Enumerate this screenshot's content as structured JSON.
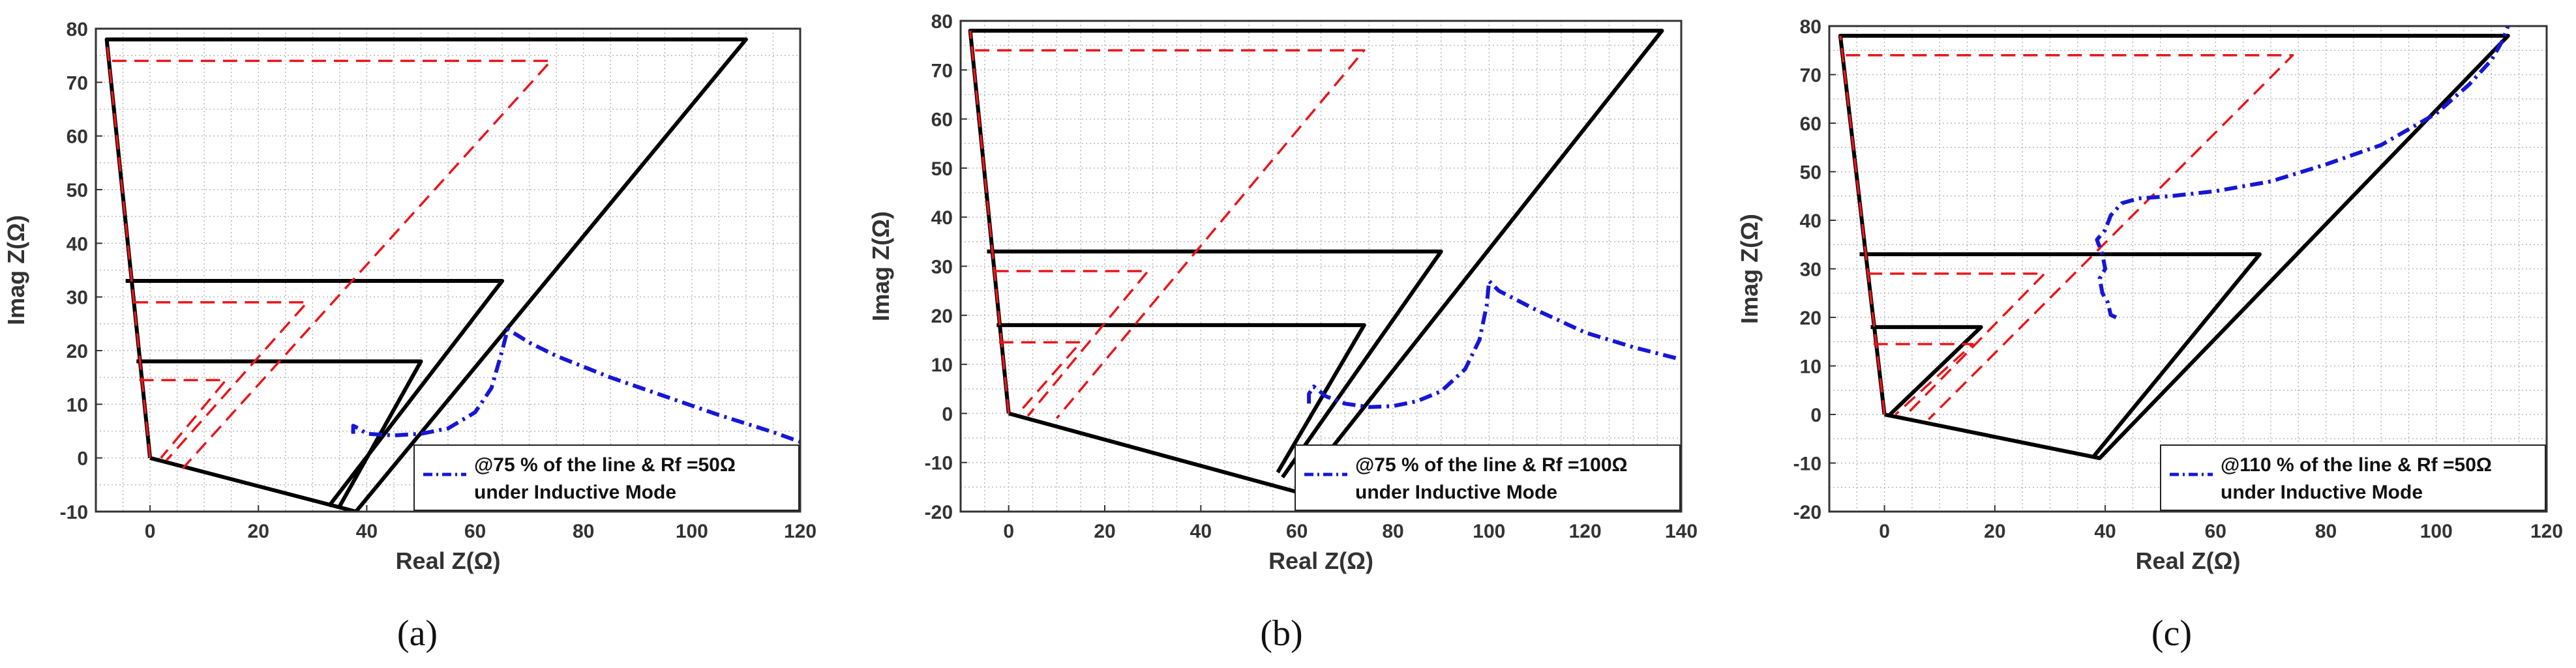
{
  "colors": {
    "zone_boundary": "#000000",
    "zone_dashed": "#e8161b",
    "trajectory": "#1616d6",
    "grid": "#b9b9b9"
  },
  "chart_data": [
    {
      "type": "line",
      "caption": "(a)",
      "xlabel": "Real Z(Ω)",
      "ylabel": "Imag Z(Ω)",
      "xlim": [
        -10,
        120
      ],
      "ylim": [
        -10,
        80
      ],
      "xticks": [
        0,
        20,
        40,
        60,
        80,
        100,
        120
      ],
      "yticks": [
        -10,
        0,
        10,
        20,
        30,
        40,
        50,
        60,
        70,
        80
      ],
      "grid": true,
      "legend": {
        "placement": "bottom-right",
        "lines": [
          "@75 % of the line & Rf =50Ω",
          "under Inductive Mode"
        ]
      },
      "series": [
        {
          "style": "solid",
          "color": "black",
          "points": [
            [
              0,
              0
            ],
            [
              -8,
              78
            ],
            [
              110,
              78
            ],
            [
              38,
              -10
            ],
            [
              0,
              0
            ]
          ]
        },
        {
          "style": "solid",
          "color": "black",
          "points": [
            [
              -4.5,
              33
            ],
            [
              65,
              33
            ],
            [
              33,
              -9
            ]
          ]
        },
        {
          "style": "solid",
          "color": "black",
          "points": [
            [
              -2.5,
              18
            ],
            [
              50,
              18
            ],
            [
              35,
              -9
            ]
          ]
        },
        {
          "style": "dashed",
          "color": "red",
          "points": [
            [
              -7,
              74
            ],
            [
              74,
              74
            ],
            [
              6,
              -2
            ]
          ]
        },
        {
          "style": "dashed",
          "color": "red",
          "points": [
            [
              -3,
              29
            ],
            [
              29,
              29
            ],
            [
              3,
              -0.5
            ]
          ]
        },
        {
          "style": "dashed",
          "color": "red",
          "points": [
            [
              -2,
              14.5
            ],
            [
              14,
              14.5
            ],
            [
              2,
              0
            ]
          ]
        },
        {
          "style": "dashed",
          "color": "red",
          "points": [
            [
              0,
              0
            ],
            [
              -8,
              78
            ]
          ]
        },
        {
          "style": "dashdot",
          "color": "blue",
          "points": [
            [
              37.5,
              4.5
            ],
            [
              37.5,
              6
            ],
            [
              38.5,
              5.5
            ],
            [
              40,
              4.5
            ],
            [
              45,
              4.2
            ],
            [
              50,
              4.5
            ],
            [
              55,
              5.5
            ],
            [
              60,
              8.5
            ],
            [
              63,
              13
            ],
            [
              65,
              20
            ],
            [
              66,
              24
            ],
            [
              70,
              21.5
            ],
            [
              75,
              19
            ],
            [
              85,
              15
            ],
            [
              95,
              11.5
            ],
            [
              105,
              8
            ],
            [
              115,
              4.8
            ],
            [
              120,
              3
            ]
          ]
        }
      ]
    },
    {
      "type": "line",
      "caption": "(b)",
      "xlabel": "Real Z(Ω)",
      "ylabel": "Imag Z(Ω)",
      "xlim": [
        -10,
        140
      ],
      "ylim": [
        -20,
        80
      ],
      "xticks": [
        0,
        20,
        40,
        60,
        80,
        100,
        120,
        140
      ],
      "yticks": [
        -20,
        -10,
        0,
        10,
        20,
        30,
        40,
        50,
        60,
        70,
        80
      ],
      "grid": true,
      "legend": {
        "placement": "bottom-right",
        "lines": [
          "@75 % of the line & Rf =100Ω",
          "under Inductive Mode"
        ]
      },
      "series": [
        {
          "style": "solid",
          "color": "black",
          "points": [
            [
              0,
              0
            ],
            [
              -8,
              78
            ],
            [
              136,
              78
            ],
            [
              60,
              -16
            ],
            [
              0,
              0
            ]
          ]
        },
        {
          "style": "solid",
          "color": "black",
          "points": [
            [
              -4.5,
              33
            ],
            [
              90,
              33
            ],
            [
              57,
              -13
            ]
          ]
        },
        {
          "style": "solid",
          "color": "black",
          "points": [
            [
              -2.5,
              18
            ],
            [
              74,
              18
            ],
            [
              56,
              -12
            ]
          ]
        },
        {
          "style": "dashed",
          "color": "red",
          "points": [
            [
              -7,
              74
            ],
            [
              74,
              74
            ],
            [
              10,
              -1
            ]
          ]
        },
        {
          "style": "dashed",
          "color": "red",
          "points": [
            [
              -3,
              29
            ],
            [
              29,
              29
            ],
            [
              4,
              -0.5
            ]
          ]
        },
        {
          "style": "dashed",
          "color": "red",
          "points": [
            [
              -2,
              14.5
            ],
            [
              15,
              14.5
            ],
            [
              2,
              0
            ]
          ]
        },
        {
          "style": "dashed",
          "color": "red",
          "points": [
            [
              0,
              0
            ],
            [
              -8,
              78
            ]
          ]
        },
        {
          "style": "dashdot",
          "color": "blue",
          "points": [
            [
              62.5,
              2
            ],
            [
              62.5,
              4
            ],
            [
              63.5,
              5.5
            ],
            [
              66,
              3.5
            ],
            [
              70,
              2
            ],
            [
              75,
              1.3
            ],
            [
              80,
              1.5
            ],
            [
              85,
              2.5
            ],
            [
              90,
              4.5
            ],
            [
              95,
              9
            ],
            [
              98,
              15
            ],
            [
              99.5,
              22
            ],
            [
              100,
              27
            ],
            [
              102,
              25
            ],
            [
              110,
              21
            ],
            [
              120,
              16.5
            ],
            [
              130,
              13.5
            ],
            [
              140,
              11
            ]
          ]
        }
      ]
    },
    {
      "type": "line",
      "caption": "(c)",
      "xlabel": "Real Z(Ω)",
      "ylabel": "Imag Z(Ω)",
      "xlim": [
        -10,
        120
      ],
      "ylim": [
        -20,
        80
      ],
      "xticks": [
        0,
        20,
        40,
        60,
        80,
        100,
        120
      ],
      "yticks": [
        -20,
        -10,
        0,
        10,
        20,
        30,
        40,
        50,
        60,
        70,
        80
      ],
      "grid": true,
      "legend": {
        "placement": "bottom-right",
        "lines": [
          "@110 % of the line & Rf =50Ω",
          "under Inductive Mode"
        ]
      },
      "series": [
        {
          "style": "solid",
          "color": "black",
          "points": [
            [
              0,
              0
            ],
            [
              -8,
              78
            ],
            [
              113,
              78
            ],
            [
              39,
              -9
            ],
            [
              0,
              0
            ]
          ]
        },
        {
          "style": "solid",
          "color": "black",
          "points": [
            [
              -4.5,
              33
            ],
            [
              68,
              33
            ],
            [
              38,
              -8.5
            ]
          ]
        },
        {
          "style": "solid",
          "color": "black",
          "points": [
            [
              -2.5,
              18
            ],
            [
              17.5,
              18
            ],
            [
              1,
              0
            ]
          ]
        },
        {
          "style": "dashed",
          "color": "red",
          "points": [
            [
              -7,
              74
            ],
            [
              74,
              74
            ],
            [
              8,
              -1
            ]
          ]
        },
        {
          "style": "dashed",
          "color": "red",
          "points": [
            [
              -3,
              29
            ],
            [
              29,
              29
            ],
            [
              4,
              0
            ]
          ]
        },
        {
          "style": "dashed",
          "color": "red",
          "points": [
            [
              -2,
              14.5
            ],
            [
              16,
              14.5
            ],
            [
              2,
              0
            ]
          ]
        },
        {
          "style": "dashed",
          "color": "red",
          "points": [
            [
              0,
              0
            ],
            [
              -8,
              78
            ]
          ]
        },
        {
          "style": "dashdot",
          "color": "blue",
          "points": [
            [
              42,
              20
            ],
            [
              41,
              20.5
            ],
            [
              40.5,
              23
            ],
            [
              39.5,
              25
            ],
            [
              39,
              28
            ],
            [
              40,
              30
            ],
            [
              39.5,
              33
            ],
            [
              38.5,
              36
            ],
            [
              40,
              38
            ],
            [
              41,
              41
            ],
            [
              43,
              43.5
            ],
            [
              46,
              44.5
            ],
            [
              52,
              45
            ],
            [
              60,
              46
            ],
            [
              70,
              48
            ],
            [
              80,
              51.5
            ],
            [
              90,
              55.5
            ],
            [
              100,
              62
            ],
            [
              106,
              68
            ],
            [
              110,
              73
            ],
            [
              112,
              77
            ],
            [
              113,
              80
            ]
          ]
        }
      ]
    }
  ]
}
